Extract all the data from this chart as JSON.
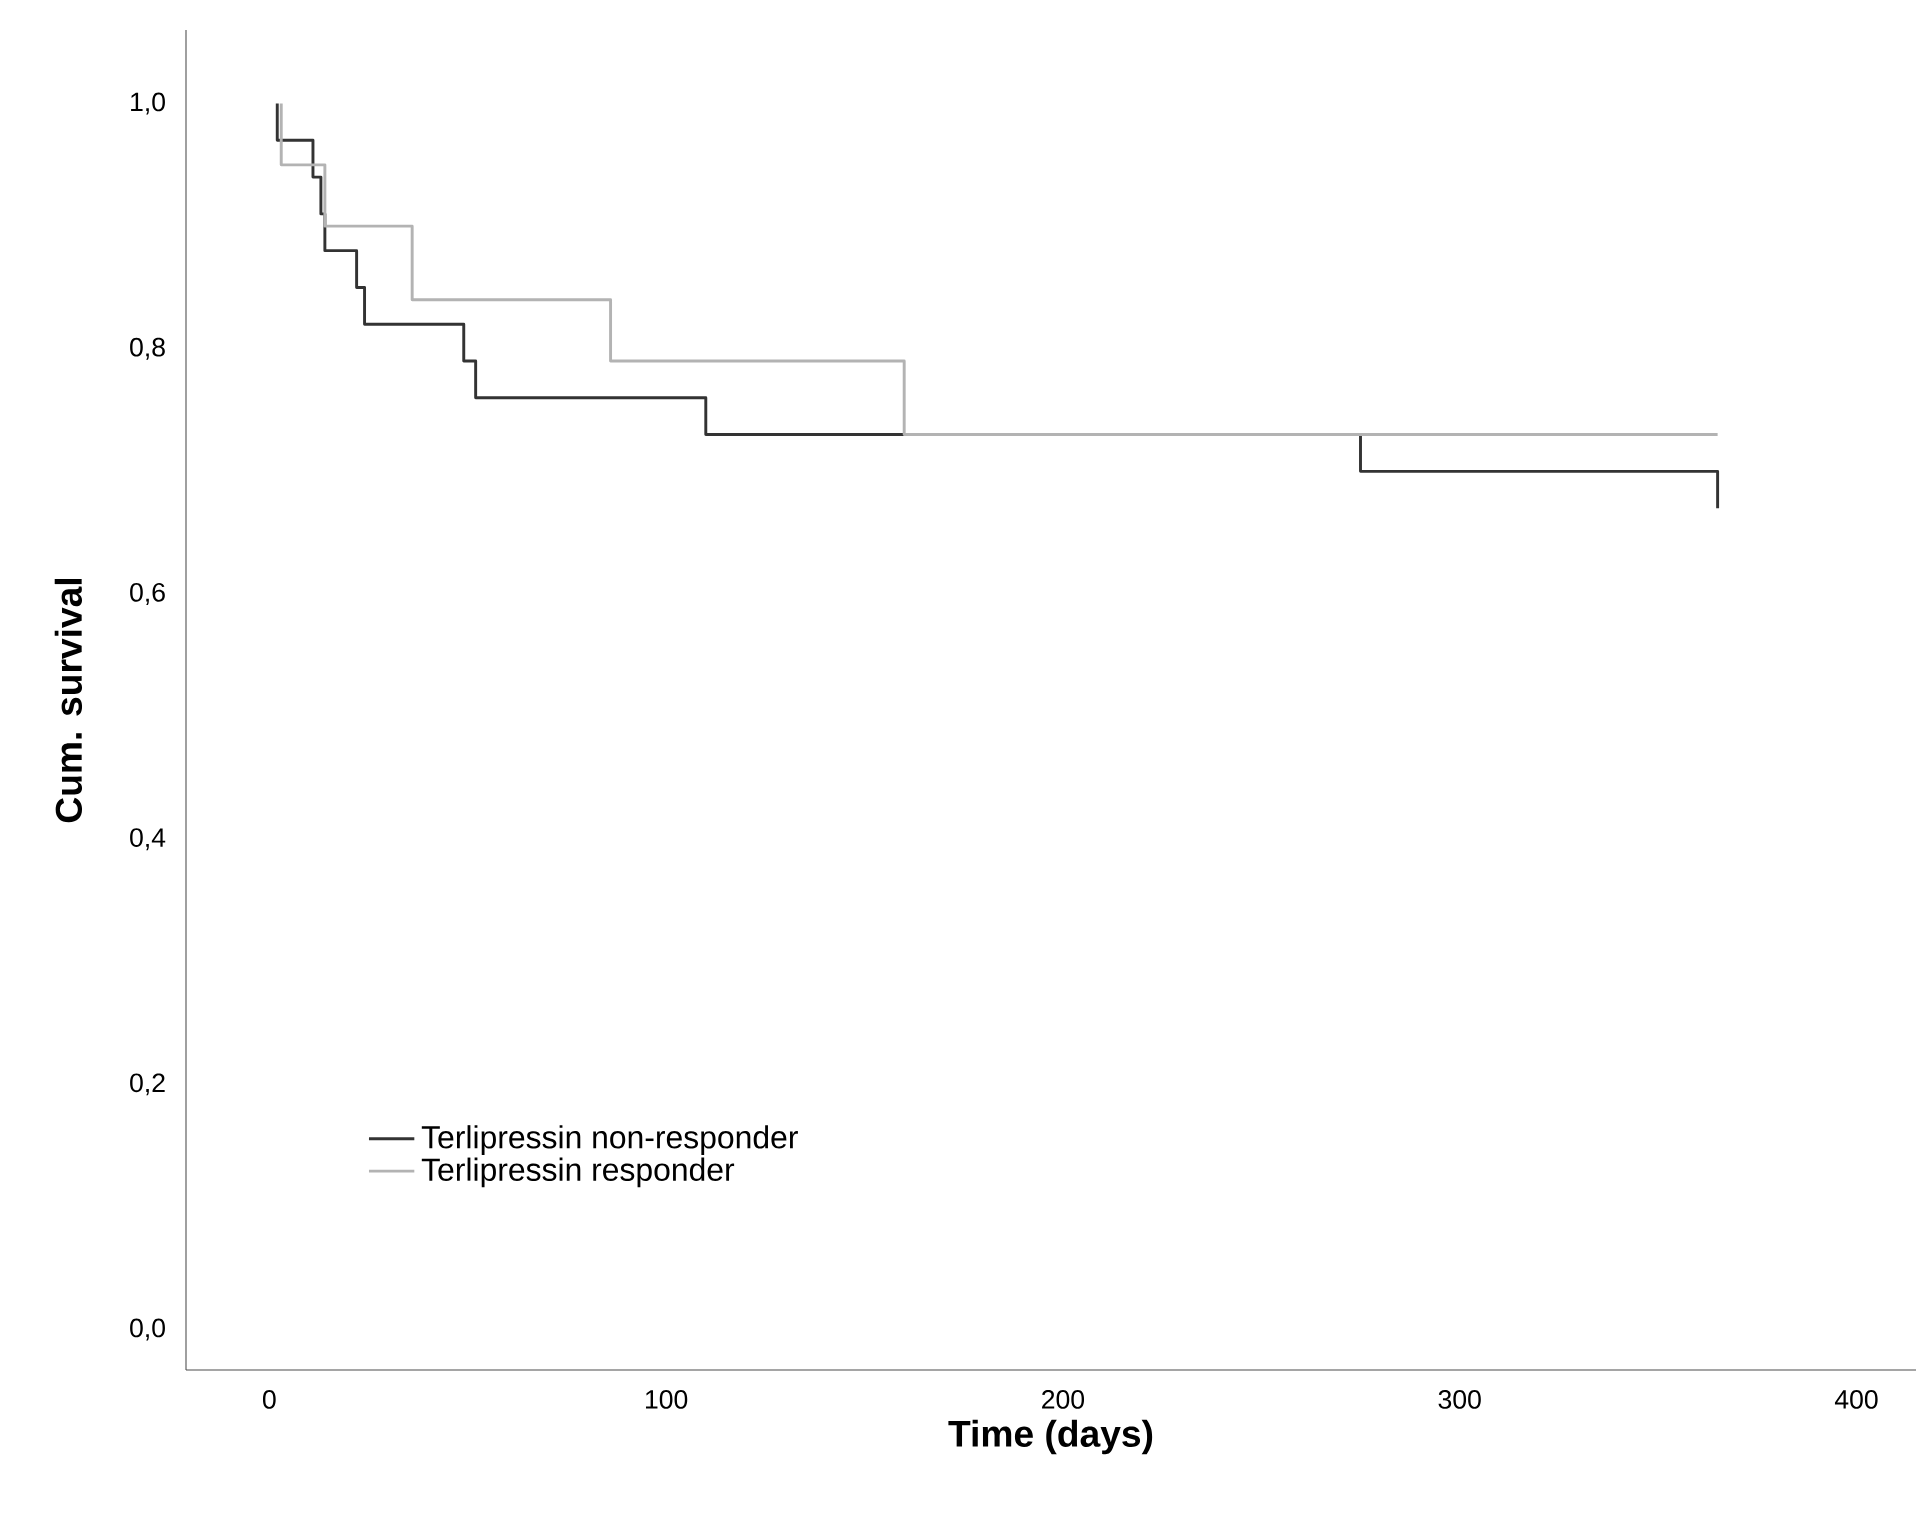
{
  "chart_data": {
    "type": "step",
    "xlabel": "Time (days)",
    "ylabel": "Cum. survival",
    "xlim": [
      -21,
      415
    ],
    "ylim": [
      -0.033,
      1.06
    ],
    "xticks": [
      0,
      100,
      200,
      300,
      400
    ],
    "yticks": [
      {
        "value": 0,
        "label": "0,0"
      },
      {
        "value": 0.2,
        "label": "0,2"
      },
      {
        "value": 0.4,
        "label": "0,4"
      },
      {
        "value": 0.6,
        "label": "0,6"
      },
      {
        "value": 0.8,
        "label": "0,8"
      },
      {
        "value": 1.0,
        "label": "1,0"
      }
    ],
    "grid": false,
    "legend": "bottom left",
    "marker": "none",
    "line_style": "solid",
    "series": [
      {
        "name": "Terlipressin non-responder",
        "color": "#333333",
        "x": [
          2,
          2,
          11,
          13,
          14,
          22,
          24,
          49,
          52,
          110,
          275,
          365,
          365
        ],
        "values": [
          1.0,
          0.97,
          0.94,
          0.91,
          0.88,
          0.85,
          0.82,
          0.79,
          0.76,
          0.73,
          0.7,
          0.7,
          0.67
        ]
      },
      {
        "name": "Terlipressin responder",
        "color": "#b3b3b3",
        "x": [
          3,
          3,
          14,
          36,
          86,
          160,
          365
        ],
        "values": [
          1.0,
          0.95,
          0.9,
          0.84,
          0.79,
          0.73,
          0.73
        ]
      }
    ]
  }
}
